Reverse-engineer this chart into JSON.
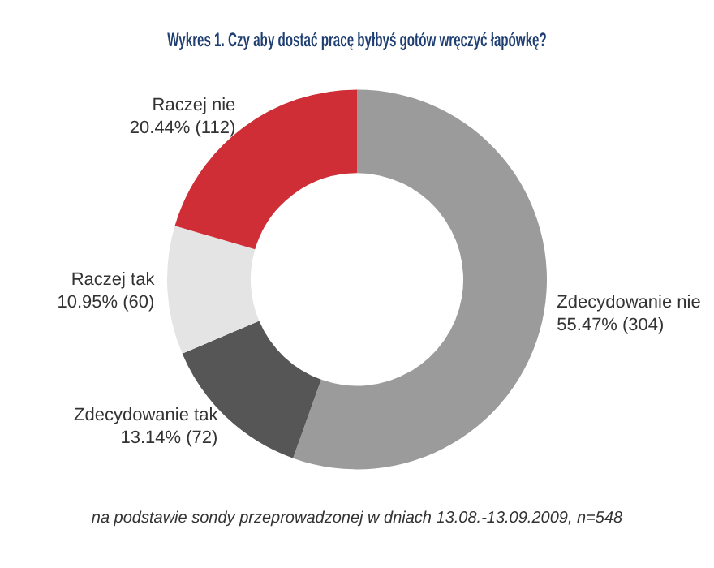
{
  "chart_data": {
    "type": "donut",
    "title": "Wykres 1. Czy aby dostać pracę byłbyś gotów wręczyć łapówkę?",
    "categories": [
      "Zdecydowanie nie",
      "Zdecydowanie tak",
      "Raczej tak",
      "Raczej nie"
    ],
    "values": [
      55.47,
      13.14,
      10.95,
      20.44
    ],
    "value_labels": [
      "55.47% (304)",
      "13.14% (72)",
      "10.95% (60)",
      "20.44% (112)"
    ],
    "colors": [
      "#9b9b9b",
      "#565656",
      "#e4e4e4",
      "#cf2e36"
    ],
    "legend": false,
    "annotations": [
      "na podstawie sondy przeprowadzonej w dniach 13.08.-13.09.2009, n=548"
    ]
  }
}
